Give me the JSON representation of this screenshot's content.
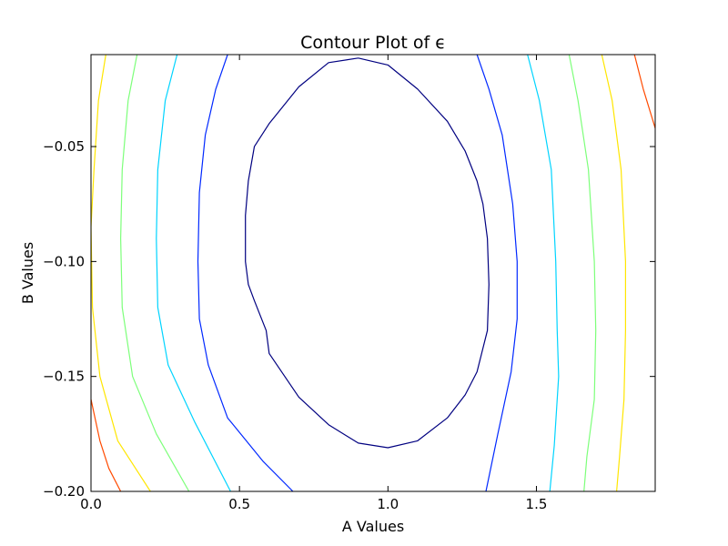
{
  "chart_data": {
    "type": "contour",
    "title": "Contour Plot of ϵ",
    "xlabel": "A Values",
    "ylabel": "B Values",
    "xlim": [
      0.0,
      1.9
    ],
    "ylim": [
      -0.2,
      -0.01
    ],
    "x_ticks": [
      {
        "value": 0.0,
        "label": "0.0"
      },
      {
        "value": 0.5,
        "label": "0.5"
      },
      {
        "value": 1.0,
        "label": "1.0"
      },
      {
        "value": 1.5,
        "label": "1.5"
      }
    ],
    "y_ticks": [
      {
        "value": -0.05,
        "label": "−0.05"
      },
      {
        "value": -0.1,
        "label": "−0.10"
      },
      {
        "value": -0.15,
        "label": "−0.15"
      },
      {
        "value": -0.2,
        "label": "−0.20"
      }
    ],
    "grid": false,
    "contours": [
      {
        "level": 1,
        "color": "#000080",
        "closed": true,
        "points": [
          [
            0.9,
            -0.0115
          ],
          [
            1.0,
            -0.0145
          ],
          [
            1.1,
            -0.025
          ],
          [
            1.2,
            -0.039
          ],
          [
            1.26,
            -0.052
          ],
          [
            1.3,
            -0.065
          ],
          [
            1.32,
            -0.075
          ],
          [
            1.335,
            -0.09
          ],
          [
            1.34,
            -0.11
          ],
          [
            1.335,
            -0.13
          ],
          [
            1.3,
            -0.148
          ],
          [
            1.26,
            -0.158
          ],
          [
            1.2,
            -0.168
          ],
          [
            1.1,
            -0.178
          ],
          [
            1.0,
            -0.181
          ],
          [
            0.9,
            -0.179
          ],
          [
            0.8,
            -0.171
          ],
          [
            0.7,
            -0.159
          ],
          [
            0.6,
            -0.14
          ],
          [
            0.59,
            -0.13
          ],
          [
            0.55,
            -0.117
          ],
          [
            0.53,
            -0.11
          ],
          [
            0.52,
            -0.1
          ],
          [
            0.52,
            -0.08
          ],
          [
            0.53,
            -0.065
          ],
          [
            0.55,
            -0.05
          ],
          [
            0.6,
            -0.04
          ],
          [
            0.7,
            -0.024
          ],
          [
            0.8,
            -0.0135
          ],
          [
            0.9,
            -0.0115
          ]
        ]
      },
      {
        "level": 2,
        "color": "#0028ff",
        "closed": false,
        "segments": [
          [
            [
              0.46,
              -0.01
            ],
            [
              0.42,
              -0.025
            ],
            [
              0.385,
              -0.045
            ],
            [
              0.365,
              -0.07
            ],
            [
              0.36,
              -0.1
            ],
            [
              0.365,
              -0.125
            ],
            [
              0.395,
              -0.145
            ],
            [
              0.46,
              -0.168
            ],
            [
              0.58,
              -0.187
            ],
            [
              0.68,
              -0.2
            ]
          ],
          [
            [
              1.3,
              -0.01
            ],
            [
              1.34,
              -0.025
            ],
            [
              1.385,
              -0.045
            ],
            [
              1.42,
              -0.075
            ],
            [
              1.435,
              -0.1
            ],
            [
              1.435,
              -0.125
            ],
            [
              1.415,
              -0.148
            ],
            [
              1.37,
              -0.175
            ],
            [
              1.33,
              -0.2
            ]
          ]
        ]
      },
      {
        "level": 3,
        "color": "#00d4ff",
        "closed": false,
        "segments": [
          [
            [
              0.29,
              -0.01
            ],
            [
              0.25,
              -0.03
            ],
            [
              0.225,
              -0.06
            ],
            [
              0.22,
              -0.09
            ],
            [
              0.225,
              -0.12
            ],
            [
              0.26,
              -0.145
            ],
            [
              0.35,
              -0.17
            ],
            [
              0.47,
              -0.2
            ]
          ],
          [
            [
              1.47,
              -0.01
            ],
            [
              1.51,
              -0.03
            ],
            [
              1.55,
              -0.06
            ],
            [
              1.565,
              -0.1
            ],
            [
              1.57,
              -0.13
            ],
            [
              1.575,
              -0.15
            ],
            [
              1.56,
              -0.18
            ],
            [
              1.545,
              -0.2
            ]
          ]
        ]
      },
      {
        "level": 4,
        "color": "#7dff7a",
        "closed": false,
        "segments": [
          [
            [
              0.155,
              -0.01
            ],
            [
              0.125,
              -0.03
            ],
            [
              0.105,
              -0.06
            ],
            [
              0.1,
              -0.09
            ],
            [
              0.105,
              -0.12
            ],
            [
              0.14,
              -0.15
            ],
            [
              0.22,
              -0.175
            ],
            [
              0.33,
              -0.2
            ]
          ],
          [
            [
              1.61,
              -0.01
            ],
            [
              1.64,
              -0.03
            ],
            [
              1.675,
              -0.06
            ],
            [
              1.695,
              -0.1
            ],
            [
              1.7,
              -0.13
            ],
            [
              1.695,
              -0.16
            ],
            [
              1.67,
              -0.185
            ],
            [
              1.66,
              -0.2
            ]
          ]
        ]
      },
      {
        "level": 5,
        "color": "#ffe600",
        "closed": false,
        "segments": [
          [
            [
              0.05,
              -0.01
            ],
            [
              0.025,
              -0.03
            ],
            [
              0.01,
              -0.06
            ],
            [
              0.0,
              -0.085
            ],
            [
              0.005,
              -0.12
            ],
            [
              0.03,
              -0.15
            ],
            [
              0.09,
              -0.178
            ],
            [
              0.2,
              -0.2
            ]
          ],
          [
            [
              1.72,
              -0.01
            ],
            [
              1.755,
              -0.03
            ],
            [
              1.785,
              -0.06
            ],
            [
              1.8,
              -0.1
            ],
            [
              1.8,
              -0.13
            ],
            [
              1.795,
              -0.16
            ],
            [
              1.78,
              -0.185
            ],
            [
              1.77,
              -0.2
            ]
          ]
        ]
      },
      {
        "level": 6,
        "color": "#ff4a00",
        "closed": false,
        "segments": [
          [
            [
              0.0,
              -0.16
            ],
            [
              0.03,
              -0.178
            ],
            [
              0.06,
              -0.19
            ],
            [
              0.1,
              -0.2
            ]
          ],
          [
            [
              1.83,
              -0.01
            ],
            [
              1.86,
              -0.025
            ],
            [
              1.9,
              -0.042
            ]
          ]
        ]
      }
    ]
  }
}
